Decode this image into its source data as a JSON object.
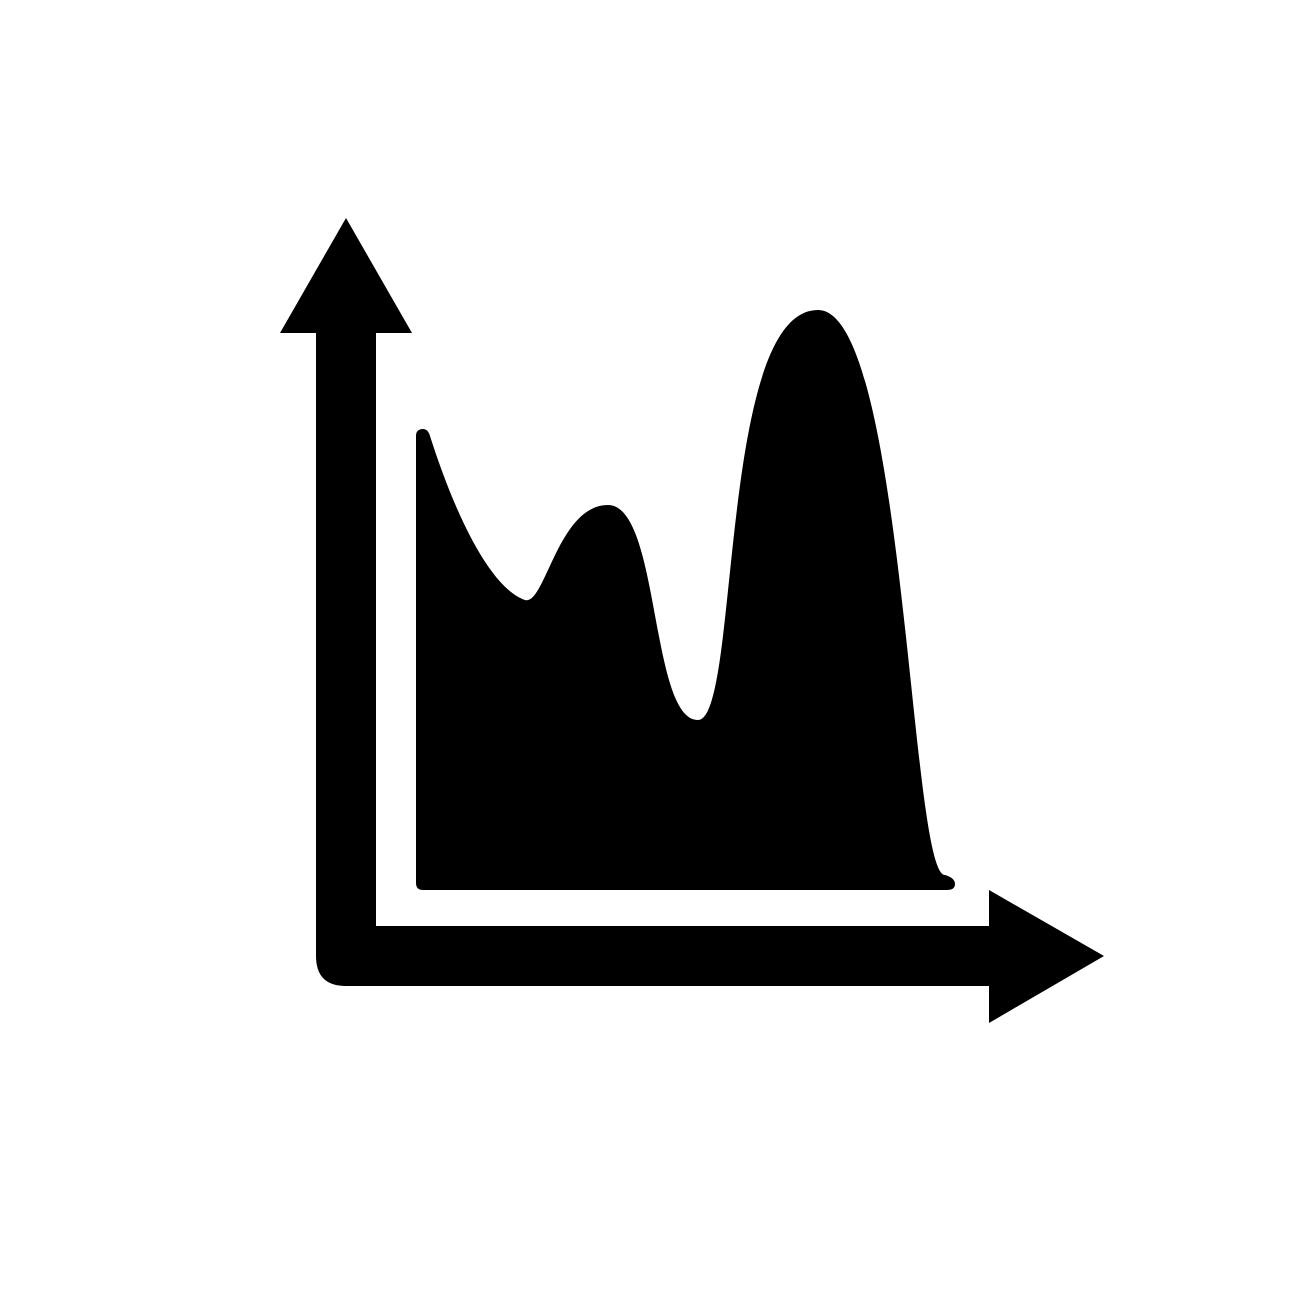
{
  "icon": {
    "name": "area-chart-icon",
    "foreground": "#000000",
    "background": "#ffffff"
  }
}
